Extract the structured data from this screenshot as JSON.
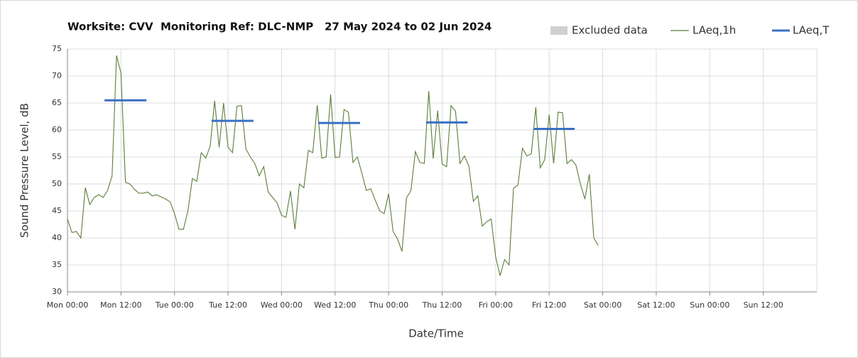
{
  "chart_data": {
    "type": "line",
    "title_parts": [
      "Worksite: CVV",
      "Monitoring Ref: DLC-NMP",
      "27 May 2024 to 02 Jun 2024"
    ],
    "y_label": "Sound Pressure Level, dB",
    "x_label": "Date/Time",
    "xlim": [
      0,
      168
    ],
    "xticks": [
      {
        "value": 0,
        "label": "Mon 00:00"
      },
      {
        "value": 12,
        "label": "Mon 12:00"
      },
      {
        "value": 24,
        "label": "Tue 00:00"
      },
      {
        "value": 36,
        "label": "Tue 12:00"
      },
      {
        "value": 48,
        "label": "Wed 00:00"
      },
      {
        "value": 60,
        "label": "Wed 12:00"
      },
      {
        "value": 72,
        "label": "Thu 00:00"
      },
      {
        "value": 84,
        "label": "Thu 12:00"
      },
      {
        "value": 96,
        "label": "Fri 00:00"
      },
      {
        "value": 108,
        "label": "Fri 12:00"
      },
      {
        "value": 120,
        "label": "Sat 00:00"
      },
      {
        "value": 132,
        "label": "Sat 12:00"
      },
      {
        "value": 144,
        "label": "Sun 00:00"
      },
      {
        "value": 156,
        "label": "Sun 12:00"
      }
    ],
    "ylim": [
      30,
      75
    ],
    "yticks": [
      30,
      35,
      40,
      45,
      50,
      55,
      60,
      65,
      70,
      75
    ],
    "grid": true,
    "legend": "top-right",
    "excluded": {
      "name": "Excluded data",
      "color": "#d0d0d0"
    },
    "x": [
      0,
      1,
      2,
      3,
      4,
      5,
      6,
      7,
      8,
      9,
      10,
      11,
      12,
      13,
      14,
      15,
      16,
      17,
      18,
      19,
      20,
      21,
      22,
      23,
      24,
      25,
      26,
      27,
      28,
      29,
      30,
      31,
      32,
      33,
      34,
      35,
      36,
      37,
      38,
      39,
      40,
      41,
      42,
      43,
      44,
      45,
      46,
      47,
      48,
      49,
      50,
      51,
      52,
      53,
      54,
      55,
      56,
      57,
      58,
      59,
      60,
      61,
      62,
      63,
      64,
      65,
      66,
      67,
      68,
      69,
      70,
      71,
      72,
      73,
      74,
      75,
      76,
      77,
      78,
      79,
      80,
      81,
      82,
      83,
      84,
      85,
      86,
      87,
      88,
      89,
      90,
      91,
      92,
      93,
      94,
      95,
      96,
      97,
      98,
      99,
      100,
      101,
      102,
      103,
      104,
      105,
      106,
      107,
      108,
      109,
      110,
      111,
      112,
      113,
      114,
      115,
      116,
      117,
      118,
      119
    ],
    "series": [
      {
        "name": "LAeq,1h",
        "color": "#5b7d3a",
        "values": [
          43.5,
          41,
          41.2,
          40,
          49.3,
          46.2,
          47.5,
          48,
          47.5,
          48.8,
          51.5,
          73.8,
          70.5,
          50.3,
          50,
          49,
          48.3,
          48.3,
          48.5,
          47.8,
          48,
          47.6,
          47.2,
          46.7,
          44.5,
          41.6,
          41.6,
          45,
          51,
          50.5,
          55.8,
          54.8,
          57,
          65.4,
          56.8,
          65,
          56.8,
          55.8,
          64.4,
          64.5,
          56.5,
          55,
          53.8,
          51.5,
          53.2,
          48.5,
          47.5,
          46.5,
          44.2,
          43.8,
          48.7,
          41.6,
          50,
          49.3,
          56.2,
          55.8,
          64.6,
          54.8,
          55,
          66.6,
          54.9,
          55,
          63.8,
          63.3,
          54,
          55,
          52,
          48.8,
          49.1,
          47,
          45,
          44.5,
          48.2,
          41.2,
          39.8,
          37.5,
          47.4,
          48.8,
          56,
          54,
          53.8,
          67.2,
          54.7,
          63.6,
          53.7,
          53.2,
          64.5,
          63.5,
          53.8,
          55.2,
          53.3,
          46.8,
          47.8,
          42.2,
          43,
          43.5,
          36.5,
          33,
          36,
          35,
          49.2,
          49.8,
          56.6,
          55.2,
          55.6,
          64.2,
          53,
          54.5,
          62.8,
          53.8,
          63.3,
          63.2,
          53.8,
          54.5,
          53.5,
          50,
          47.2,
          51.8,
          40,
          38.6
        ]
      },
      {
        "name": "LAeq,T",
        "color": "#3a6fc4",
        "segments": [
          {
            "x": [
              8.3,
              17.7
            ],
            "value": 65.5
          },
          {
            "x": [
              32.3,
              41.7
            ],
            "value": 61.7
          },
          {
            "x": [
              56.2,
              65.6
            ],
            "value": 61.3
          },
          {
            "x": [
              80.4,
              89.7
            ],
            "value": 61.4
          },
          {
            "x": [
              104.5,
              113.7
            ],
            "value": 60.2
          }
        ]
      }
    ]
  }
}
